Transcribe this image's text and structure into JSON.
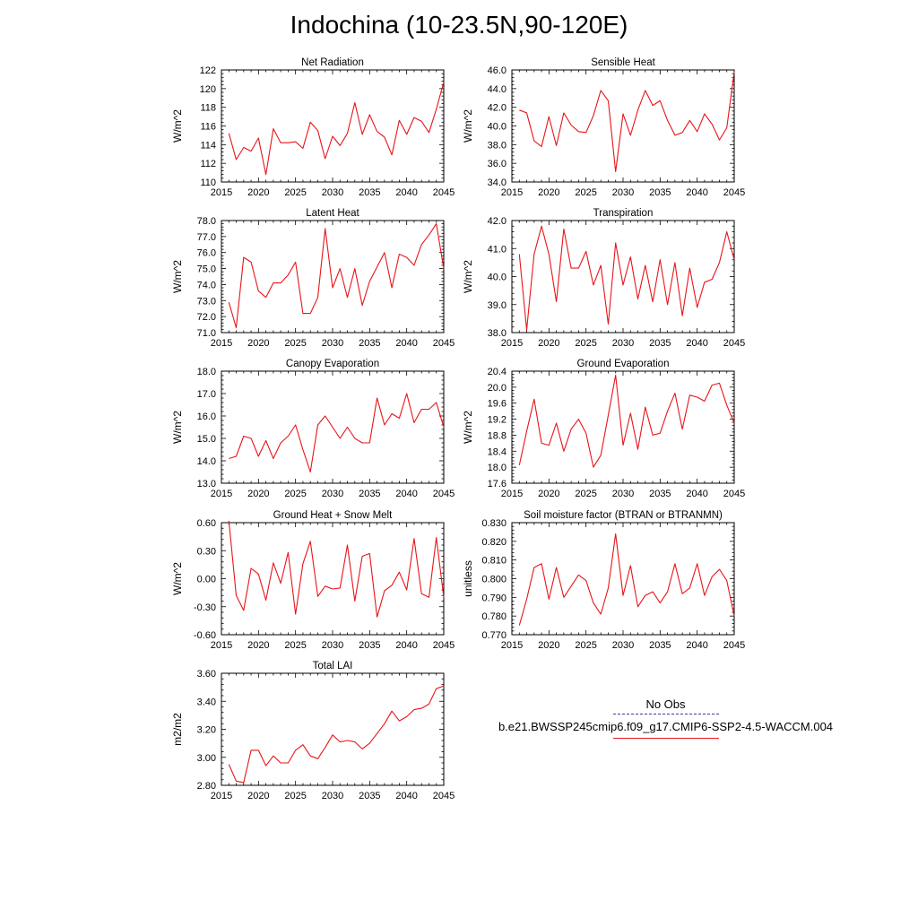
{
  "title": "Indochina (10-23.5N,90-120E)",
  "legend": {
    "obs_label": "No Obs",
    "model_label": "b.e21.BWSSP245cmip6.f09_g17.CMIP6-SSP2-4.5-WACCM.004",
    "obs_color": "#3a3a9a",
    "model_color": "#e8141a"
  },
  "chart_data": [
    {
      "type": "line",
      "title": "Net Radiation",
      "ylabel": "W/m^2",
      "xlim": [
        2015,
        2045
      ],
      "ylim": [
        110,
        122
      ],
      "xticks": [
        "2015",
        "2020",
        "2025",
        "2030",
        "2035",
        "2040",
        "2045"
      ],
      "yticks": [
        "110",
        "112",
        "114",
        "116",
        "118",
        "120",
        "122"
      ],
      "x": [
        2016,
        2017,
        2018,
        2019,
        2020,
        2021,
        2022,
        2023,
        2024,
        2025,
        2026,
        2027,
        2028,
        2029,
        2030,
        2031,
        2032,
        2033,
        2034,
        2035,
        2036,
        2037,
        2038,
        2039,
        2040,
        2041,
        2042,
        2043,
        2044,
        2045
      ],
      "values": [
        115.2,
        112.4,
        113.7,
        113.3,
        114.7,
        110.8,
        115.7,
        114.2,
        114.2,
        114.3,
        113.6,
        116.4,
        115.5,
        112.5,
        114.9,
        113.9,
        115.2,
        118.5,
        115.1,
        117.2,
        115.4,
        114.8,
        112.9,
        116.6,
        115.1,
        116.9,
        116.5,
        115.3,
        117.8,
        120.7
      ],
      "color": "#e8141a"
    },
    {
      "type": "line",
      "title": "Sensible Heat",
      "ylabel": "W/m^2",
      "xlim": [
        2015,
        2045
      ],
      "ylim": [
        34.0,
        46.0
      ],
      "xticks": [
        "2015",
        "2020",
        "2025",
        "2030",
        "2035",
        "2040",
        "2045"
      ],
      "yticks": [
        "34.0",
        "36.0",
        "38.0",
        "40.0",
        "42.0",
        "44.0",
        "46.0"
      ],
      "x": [
        2016,
        2017,
        2018,
        2019,
        2020,
        2021,
        2022,
        2023,
        2024,
        2025,
        2026,
        2027,
        2028,
        2029,
        2030,
        2031,
        2032,
        2033,
        2034,
        2035,
        2036,
        2037,
        2038,
        2039,
        2040,
        2041,
        2042,
        2043,
        2044,
        2045
      ],
      "values": [
        41.7,
        41.4,
        38.4,
        37.8,
        41.0,
        37.9,
        41.4,
        40.1,
        39.4,
        39.3,
        41.1,
        43.8,
        42.7,
        35.1,
        41.3,
        39.0,
        41.7,
        43.8,
        42.2,
        42.7,
        40.6,
        39.0,
        39.3,
        40.6,
        39.4,
        41.3,
        40.2,
        38.5,
        39.8,
        45.8
      ],
      "color": "#e8141a"
    },
    {
      "type": "line",
      "title": "Latent Heat",
      "ylabel": "W/m^2",
      "xlim": [
        2015,
        2045
      ],
      "ylim": [
        71.0,
        78.0
      ],
      "xticks": [
        "2015",
        "2020",
        "2025",
        "2030",
        "2035",
        "2040",
        "2045"
      ],
      "yticks": [
        "71.0",
        "72.0",
        "73.0",
        "74.0",
        "75.0",
        "76.0",
        "77.0",
        "78.0"
      ],
      "x": [
        2016,
        2017,
        2018,
        2019,
        2020,
        2021,
        2022,
        2023,
        2024,
        2025,
        2026,
        2027,
        2028,
        2029,
        2030,
        2031,
        2032,
        2033,
        2034,
        2035,
        2036,
        2037,
        2038,
        2039,
        2040,
        2041,
        2042,
        2043,
        2044,
        2045
      ],
      "values": [
        72.9,
        71.3,
        75.7,
        75.4,
        73.6,
        73.2,
        74.1,
        74.1,
        74.6,
        75.4,
        72.2,
        72.2,
        73.2,
        77.5,
        73.8,
        75.0,
        73.2,
        75.0,
        72.7,
        74.2,
        75.1,
        76.0,
        73.8,
        75.9,
        75.7,
        75.2,
        76.5,
        77.1,
        77.8,
        75.0
      ],
      "color": "#e8141a"
    },
    {
      "type": "line",
      "title": "Transpiration",
      "ylabel": "W/m^2",
      "xlim": [
        2015,
        2045
      ],
      "ylim": [
        38.0,
        42.0
      ],
      "xticks": [
        "2015",
        "2020",
        "2025",
        "2030",
        "2035",
        "2040",
        "2045"
      ],
      "yticks": [
        "38.0",
        "39.0",
        "40.0",
        "41.0",
        "42.0"
      ],
      "x": [
        2016,
        2017,
        2018,
        2019,
        2020,
        2021,
        2022,
        2023,
        2024,
        2025,
        2026,
        2027,
        2028,
        2029,
        2030,
        2031,
        2032,
        2033,
        2034,
        2035,
        2036,
        2037,
        2038,
        2039,
        2040,
        2041,
        2042,
        2043,
        2044,
        2045
      ],
      "values": [
        40.8,
        38.1,
        40.8,
        41.8,
        40.8,
        39.1,
        41.7,
        40.3,
        40.3,
        40.9,
        39.7,
        40.4,
        38.3,
        41.2,
        39.7,
        40.7,
        39.2,
        40.4,
        39.1,
        40.6,
        39.0,
        40.5,
        38.6,
        40.3,
        38.9,
        39.8,
        39.9,
        40.5,
        41.6,
        40.6
      ],
      "color": "#e8141a"
    },
    {
      "type": "line",
      "title": "Canopy Evaporation",
      "ylabel": "W/m^2",
      "xlim": [
        2015,
        2045
      ],
      "ylim": [
        13.0,
        18.0
      ],
      "xticks": [
        "2015",
        "2020",
        "2025",
        "2030",
        "2035",
        "2040",
        "2045"
      ],
      "yticks": [
        "13.0",
        "14.0",
        "15.0",
        "16.0",
        "17.0",
        "18.0"
      ],
      "x": [
        2016,
        2017,
        2018,
        2019,
        2020,
        2021,
        2022,
        2023,
        2024,
        2025,
        2026,
        2027,
        2028,
        2029,
        2030,
        2031,
        2032,
        2033,
        2034,
        2035,
        2036,
        2037,
        2038,
        2039,
        2040,
        2041,
        2042,
        2043,
        2044,
        2045
      ],
      "values": [
        14.1,
        14.2,
        15.1,
        15.0,
        14.2,
        14.9,
        14.1,
        14.8,
        15.1,
        15.6,
        14.5,
        13.5,
        15.6,
        16.0,
        15.5,
        15.0,
        15.5,
        15.0,
        14.8,
        14.8,
        16.8,
        15.6,
        16.1,
        15.9,
        17.0,
        15.7,
        16.3,
        16.3,
        16.6,
        15.5
      ],
      "color": "#e8141a"
    },
    {
      "type": "line",
      "title": "Ground Evaporation",
      "ylabel": "W/m^2",
      "xlim": [
        2015,
        2045
      ],
      "ylim": [
        17.6,
        20.4
      ],
      "xticks": [
        "2015",
        "2020",
        "2025",
        "2030",
        "2035",
        "2040",
        "2045"
      ],
      "yticks": [
        "17.6",
        "18.0",
        "18.4",
        "18.8",
        "19.2",
        "19.6",
        "20.0",
        "20.4"
      ],
      "x": [
        2016,
        2017,
        2018,
        2019,
        2020,
        2021,
        2022,
        2023,
        2024,
        2025,
        2026,
        2027,
        2028,
        2029,
        2030,
        2031,
        2032,
        2033,
        2034,
        2035,
        2036,
        2037,
        2038,
        2039,
        2040,
        2041,
        2042,
        2043,
        2044,
        2045
      ],
      "values": [
        18.05,
        18.9,
        19.7,
        18.6,
        18.55,
        19.1,
        18.4,
        18.95,
        19.2,
        18.85,
        18.0,
        18.3,
        19.3,
        20.3,
        18.55,
        19.35,
        18.45,
        19.5,
        18.8,
        18.85,
        19.4,
        19.85,
        18.95,
        19.8,
        19.75,
        19.65,
        20.05,
        20.1,
        19.55,
        19.1
      ],
      "color": "#e8141a"
    },
    {
      "type": "line",
      "title": "Ground Heat + Snow Melt",
      "ylabel": "W/m^2",
      "xlim": [
        2015,
        2045
      ],
      "ylim": [
        -0.6,
        0.6
      ],
      "xticks": [
        "2015",
        "2020",
        "2025",
        "2030",
        "2035",
        "2040",
        "2045"
      ],
      "yticks": [
        "-0.60",
        "-0.30",
        "0.00",
        "0.30",
        "0.60"
      ],
      "x": [
        2016,
        2017,
        2018,
        2019,
        2020,
        2021,
        2022,
        2023,
        2024,
        2025,
        2026,
        2027,
        2028,
        2029,
        2030,
        2031,
        2032,
        2033,
        2034,
        2035,
        2036,
        2037,
        2038,
        2039,
        2040,
        2041,
        2042,
        2043,
        2044,
        2045
      ],
      "values": [
        0.62,
        -0.18,
        -0.34,
        0.11,
        0.05,
        -0.23,
        0.17,
        -0.05,
        0.28,
        -0.38,
        0.16,
        0.4,
        -0.19,
        -0.08,
        -0.11,
        -0.1,
        0.36,
        -0.24,
        0.24,
        0.27,
        -0.41,
        -0.13,
        -0.07,
        0.07,
        -0.12,
        0.43,
        -0.16,
        -0.2,
        0.44,
        -0.2
      ],
      "color": "#e8141a"
    },
    {
      "type": "line",
      "title": "Soil moisture factor (BTRAN or BTRANMN)",
      "ylabel": "unitless",
      "xlim": [
        2015,
        2045
      ],
      "ylim": [
        0.77,
        0.83
      ],
      "xticks": [
        "2015",
        "2020",
        "2025",
        "2030",
        "2035",
        "2040",
        "2045"
      ],
      "yticks": [
        "0.770",
        "0.780",
        "0.790",
        "0.800",
        "0.810",
        "0.820",
        "0.830"
      ],
      "x": [
        2016,
        2017,
        2018,
        2019,
        2020,
        2021,
        2022,
        2023,
        2024,
        2025,
        2026,
        2027,
        2028,
        2029,
        2030,
        2031,
        2032,
        2033,
        2034,
        2035,
        2036,
        2037,
        2038,
        2039,
        2040,
        2041,
        2042,
        2043,
        2044,
        2045
      ],
      "values": [
        0.775,
        0.789,
        0.806,
        0.808,
        0.789,
        0.806,
        0.79,
        0.796,
        0.802,
        0.799,
        0.787,
        0.781,
        0.795,
        0.824,
        0.791,
        0.807,
        0.785,
        0.791,
        0.793,
        0.787,
        0.793,
        0.808,
        0.792,
        0.795,
        0.808,
        0.791,
        0.801,
        0.805,
        0.799,
        0.78
      ],
      "color": "#e8141a"
    },
    {
      "type": "line",
      "title": "Total LAI",
      "ylabel": "m2/m2",
      "xlim": [
        2015,
        2045
      ],
      "ylim": [
        2.8,
        3.6
      ],
      "xticks": [
        "2015",
        "2020",
        "2025",
        "2030",
        "2035",
        "2040",
        "2045"
      ],
      "yticks": [
        "2.80",
        "3.00",
        "3.20",
        "3.40",
        "3.60"
      ],
      "x": [
        2016,
        2017,
        2018,
        2019,
        2020,
        2021,
        2022,
        2023,
        2024,
        2025,
        2026,
        2027,
        2028,
        2029,
        2030,
        2031,
        2032,
        2033,
        2034,
        2035,
        2036,
        2037,
        2038,
        2039,
        2040,
        2041,
        2042,
        2043,
        2044,
        2045
      ],
      "values": [
        2.95,
        2.83,
        2.82,
        3.05,
        3.05,
        2.94,
        3.01,
        2.96,
        2.96,
        3.05,
        3.09,
        3.01,
        2.99,
        3.07,
        3.16,
        3.11,
        3.12,
        3.11,
        3.06,
        3.1,
        3.17,
        3.24,
        3.33,
        3.26,
        3.29,
        3.34,
        3.35,
        3.38,
        3.49,
        3.51
      ],
      "color": "#e8141a"
    }
  ]
}
